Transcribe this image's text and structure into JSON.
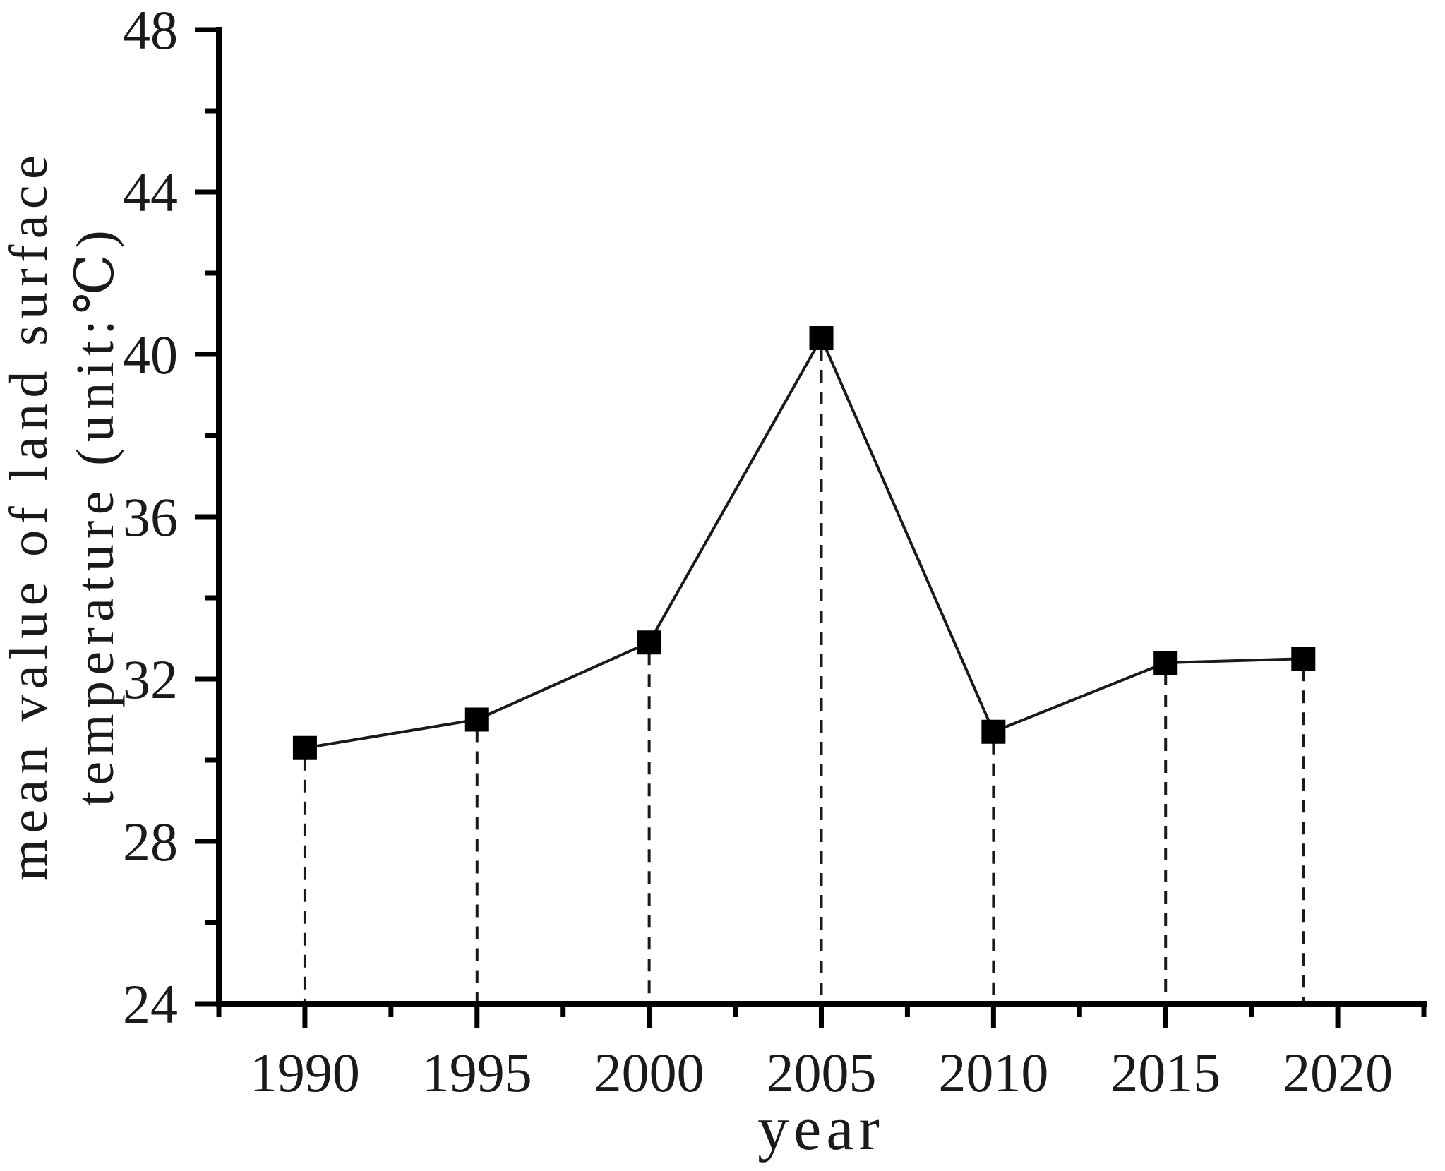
{
  "page": {
    "background": "#ffffff"
  },
  "chart_data": {
    "type": "line",
    "title": "",
    "xlabel": "year",
    "ylabel": "mean value of land surface temperature (unit:℃)",
    "ylabel_lines": [
      "mean value of land surface",
      "temperature (unit:℃)"
    ],
    "x": [
      1990,
      1995,
      2000,
      2005,
      2010,
      2015,
      2019
    ],
    "y": [
      30.3,
      31.0,
      32.9,
      40.4,
      30.7,
      32.4,
      32.5
    ],
    "series_name": "mean value of land surface temperature",
    "xlim": [
      1987.5,
      2022.5
    ],
    "ylim": [
      24,
      48
    ],
    "x_major_ticks": [
      1990,
      1995,
      2000,
      2005,
      2010,
      2015,
      2020
    ],
    "x_minor_ticks": [
      1987.5,
      1992.5,
      1997.5,
      2002.5,
      2007.5,
      2012.5,
      2017.5,
      2022.5
    ],
    "y_major_ticks": [
      24,
      28,
      32,
      36,
      40,
      44,
      48
    ],
    "y_minor_ticks": [
      26,
      30,
      34,
      38,
      42,
      46
    ],
    "marker": "filled-square",
    "drop_lines": "dashed-vertical-to-x-axis",
    "grid": false,
    "legend": null,
    "colors": {
      "line": "#1a1a1a",
      "marker": "#000000",
      "axis": "#000000",
      "text": "#1a1a1a"
    }
  }
}
